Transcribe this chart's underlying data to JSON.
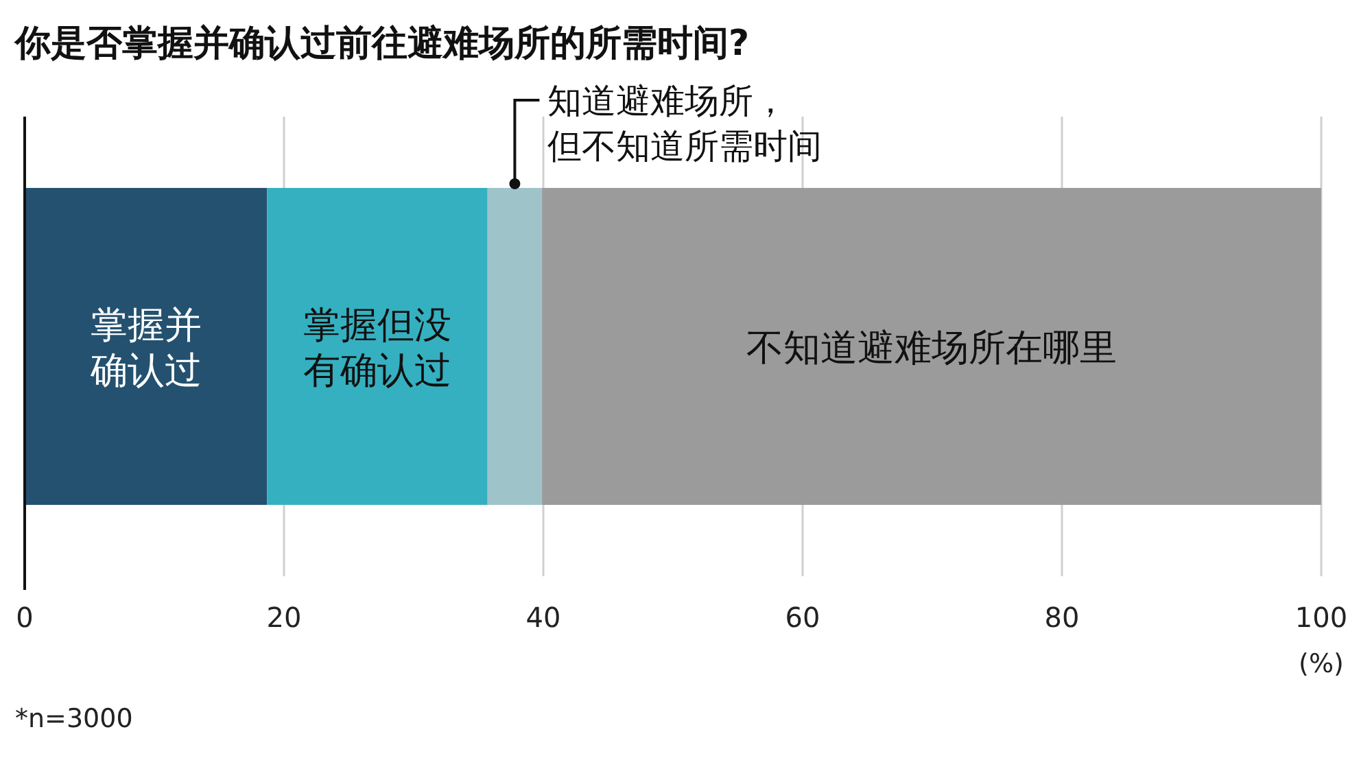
{
  "chart_data": {
    "type": "bar",
    "orientation": "horizontal",
    "stacked": true,
    "title": "你是否掌握并确认过前往避难场所的所需时间?",
    "xlabel": "(%)",
    "categories": [
      null
    ],
    "series": [
      {
        "name": "掌握并确认过",
        "color": "#24516f",
        "values": [
          18.7
        ]
      },
      {
        "name": "掌握但没有确认过",
        "color": "#35b0c0",
        "values": [
          17.0
        ]
      },
      {
        "name": "知道避难场所，但不知道所需时间",
        "color": "#9ec4ca",
        "values": [
          4.2
        ]
      },
      {
        "name": "不知道避难场所在哪里",
        "color": "#9b9b9b",
        "values": [
          60.1
        ]
      }
    ],
    "xlim": [
      0,
      100
    ],
    "xticks": [
      0,
      20,
      40,
      60,
      80,
      100
    ],
    "grid": "x",
    "legend": false,
    "annotations": [
      "*n=3000"
    ]
  }
}
